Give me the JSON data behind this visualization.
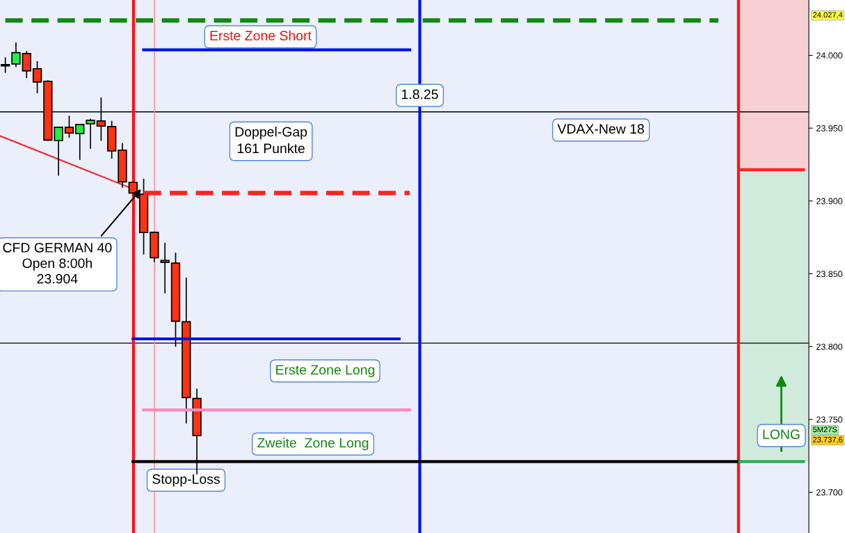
{
  "chart_data": {
    "type": "candlestick",
    "categories": [
      null,
      null,
      null,
      null,
      null,
      null,
      null,
      null,
      null,
      null,
      null,
      null,
      null,
      null,
      null,
      null,
      null,
      null,
      null,
      null,
      null,
      null,
      null,
      null,
      null,
      null,
      null,
      null,
      null,
      null,
      null,
      null,
      null,
      null,
      null,
      null,
      null,
      null,
      null,
      null,
      null,
      null,
      null,
      null,
      null,
      null,
      null,
      null,
      null,
      null,
      null,
      null,
      null,
      null,
      null,
      null,
      null,
      null,
      null,
      null,
      null,
      null,
      null,
      null,
      null,
      null,
      null,
      null,
      null,
      null,
      null,
      null,
      null,
      null,
      null,
      null
    ],
    "ohlc": [
      [
        23992.8,
        23998.6,
        23988.0,
        23993.6
      ],
      [
        23994.1,
        24008.8,
        23992.0,
        24001.9
      ],
      [
        24001.3,
        24002.9,
        23984.4,
        23989.3
      ],
      [
        23990.8,
        23996.0,
        23974.0,
        23981.7
      ],
      [
        23982.2,
        23982.9,
        23941.3,
        23941.8
      ],
      [
        23941.5,
        23950.6,
        23917.4,
        23950.6
      ],
      [
        23950.6,
        23958.5,
        23943.4,
        23946.6
      ],
      [
        23946.3,
        23952.5,
        23928.2,
        23952.5
      ],
      [
        23953.0,
        23956.5,
        23935.9,
        23955.4
      ],
      [
        23954.9,
        23971.0,
        23941.3,
        23951.4
      ],
      [
        23951.1,
        23955.0,
        23929.0,
        23934.3
      ],
      [
        23934.9,
        23939.7,
        23909.1,
        23913.1
      ],
      [
        23912.8,
        23912.8,
        23905.0,
        23905.5
      ],
      [
        23904.6,
        23915.2,
        23863.2,
        23878.3
      ],
      [
        23878.5,
        23879.0,
        23858.0,
        23861.0
      ],
      [
        23859.2,
        23871.3,
        23836.5,
        23857.8
      ],
      [
        23857.3,
        23864.5,
        23799.9,
        23817.4
      ],
      [
        23817.1,
        23847.4,
        23747.2,
        23765.0
      ],
      [
        23764.4,
        23771.1,
        23712.2,
        23738.9
      ],
      null,
      null,
      null,
      null,
      null,
      null,
      null,
      null,
      null,
      null,
      null,
      null,
      null,
      null,
      null,
      null,
      null,
      null,
      null,
      null,
      null,
      null,
      null,
      null,
      null,
      null,
      null,
      null,
      null,
      null,
      null,
      null,
      null,
      null,
      null,
      null,
      null,
      null,
      null,
      null,
      null,
      null,
      null,
      null,
      null,
      null,
      null,
      null,
      null,
      null,
      null,
      null,
      null,
      null,
      null,
      null,
      null
    ],
    "colors": [
      "#22ee44",
      "#22ee44",
      "#ff3311",
      "#ff3311",
      "#ff3311",
      "#22ee44",
      "#ff3311",
      "#22ee44",
      "#22ee44",
      "#ff3311",
      "#ff3311",
      "#ff3311",
      "#ff3311",
      "#ff3311",
      "#ff3311",
      "#ff3311",
      "#ff3311",
      "#ff3311",
      "#ff3311",
      null,
      null,
      null,
      null,
      null,
      null,
      null,
      null,
      null,
      null,
      null,
      null,
      null,
      null,
      null,
      null,
      null,
      null,
      null,
      null,
      null,
      null,
      null,
      null,
      null,
      null,
      null,
      null,
      null,
      null,
      null,
      null,
      null,
      null,
      null,
      null,
      null,
      null,
      null,
      null,
      null,
      null,
      null,
      null,
      null,
      null,
      null,
      null,
      null,
      null,
      null,
      null,
      null,
      null,
      null,
      null,
      null
    ],
    "series": [
      {
        "type": "line",
        "color": "#118811",
        "line_style": "dashed",
        "values": [
          24024,
          24024,
          24024,
          24024,
          24024,
          24024,
          24024,
          24024,
          24024,
          24024,
          24024,
          24024,
          24024,
          24024,
          24024,
          24024,
          24024,
          24024,
          24024,
          24024,
          24024,
          24024,
          24024,
          24024,
          24024,
          24024,
          24024,
          24024,
          24024,
          24024,
          24024,
          24024,
          24024,
          24024,
          24024,
          24024,
          24024,
          24024,
          24024,
          24024,
          24024,
          24024,
          24024,
          24024,
          24024,
          24024,
          24024,
          24024,
          24024,
          24024,
          24024,
          24024,
          24024,
          24024,
          24024,
          24024,
          24024,
          24024,
          24024,
          24024,
          24024,
          24024,
          24024,
          24024,
          24024,
          24024,
          24024,
          24024,
          null,
          null,
          null,
          null,
          null,
          null,
          null,
          null
        ]
      },
      {
        "type": "line",
        "color": "#0011ee",
        "line_style": "solid",
        "values": [
          null,
          null,
          null,
          null,
          null,
          null,
          null,
          null,
          null,
          null,
          null,
          null,
          null,
          24003.8,
          24003.8,
          24003.8,
          24003.8,
          24003.8,
          24003.8,
          24003.8,
          24003.8,
          24003.8,
          24003.8,
          24003.8,
          24003.8,
          24003.8,
          24003.8,
          24003.8,
          24003.8,
          24003.8,
          24003.8,
          24003.8,
          24003.8,
          24003.8,
          24003.8,
          24003.8,
          24003.8,
          24003.8,
          24003.8,
          null,
          null,
          null,
          null,
          null,
          null,
          null,
          null,
          null,
          null,
          null,
          null,
          null,
          null,
          null,
          null,
          null,
          null,
          null,
          null,
          null,
          null,
          null,
          null,
          null,
          null,
          null,
          null,
          null,
          null,
          null,
          null,
          null,
          null,
          null,
          null,
          null
        ]
      },
      {
        "type": "line",
        "color": "#ff2222",
        "line_style": "dashed",
        "values": [
          null,
          null,
          null,
          null,
          null,
          null,
          null,
          null,
          null,
          null,
          null,
          null,
          null,
          23905.5,
          23905.5,
          23905.5,
          23905.5,
          23905.5,
          23905.5,
          23905.5,
          23905.5,
          23905.5,
          23905.5,
          23905.5,
          23905.5,
          23905.5,
          23905.5,
          23905.5,
          23905.5,
          23905.5,
          23905.5,
          23905.5,
          23905.5,
          23905.5,
          23905.5,
          23905.5,
          23905.5,
          23905.5,
          23905.5,
          null,
          null,
          null,
          null,
          null,
          null,
          null,
          null,
          null,
          null,
          null,
          null,
          null,
          null,
          null,
          null,
          null,
          null,
          null,
          null,
          null,
          null,
          null,
          null,
          null,
          null,
          null,
          null,
          null,
          null,
          null,
          null,
          null,
          null,
          null,
          null,
          null
        ]
      },
      {
        "type": "line",
        "color": "#0011ee",
        "line_style": "solid",
        "values": [
          null,
          null,
          null,
          null,
          null,
          null,
          null,
          null,
          null,
          null,
          null,
          null,
          23805.3,
          23805.3,
          23805.3,
          23805.3,
          23805.3,
          23805.3,
          23805.3,
          23805.3,
          23805.3,
          23805.3,
          23805.3,
          23805.3,
          23805.3,
          23805.3,
          23805.3,
          23805.3,
          23805.3,
          23805.3,
          23805.3,
          23805.3,
          23805.3,
          23805.3,
          23805.3,
          23805.3,
          23805.3,
          23805.3,
          null,
          null,
          null,
          null,
          null,
          null,
          null,
          null,
          null,
          null,
          null,
          null,
          null,
          null,
          null,
          null,
          null,
          null,
          null,
          null,
          null,
          null,
          null,
          null,
          null,
          null,
          null,
          null,
          null,
          null,
          null,
          null,
          null,
          null,
          null,
          null,
          null,
          null
        ]
      },
      {
        "type": "line",
        "color": "#ff88bb",
        "line_style": "solid",
        "values": [
          null,
          null,
          null,
          null,
          null,
          null,
          null,
          null,
          null,
          null,
          null,
          null,
          null,
          23756.5,
          23756.5,
          23756.5,
          23756.5,
          23756.5,
          23756.5,
          23756.5,
          23756.5,
          23756.5,
          23756.5,
          23756.5,
          23756.5,
          23756.5,
          23756.5,
          23756.5,
          23756.5,
          23756.5,
          23756.5,
          23756.5,
          23756.5,
          23756.5,
          23756.5,
          23756.5,
          23756.5,
          23756.5,
          23756.5,
          null,
          null,
          null,
          null,
          null,
          null,
          null,
          null,
          null,
          null,
          null,
          null,
          null,
          null,
          null,
          null,
          null,
          null,
          null,
          null,
          null,
          null,
          null,
          null,
          null,
          null,
          null,
          null,
          null,
          null,
          null,
          null,
          null,
          null,
          null,
          null,
          null
        ]
      },
      {
        "type": "line",
        "color": "#000000",
        "line_style": "solid",
        "values": [
          null,
          null,
          null,
          null,
          null,
          null,
          null,
          null,
          null,
          null,
          null,
          null,
          23721,
          23721,
          23721,
          23721,
          23721,
          23721,
          23721,
          23721,
          23721,
          23721,
          23721,
          23721,
          23721,
          23721,
          23721,
          23721,
          23721,
          23721,
          23721,
          23721,
          23721,
          23721,
          23721,
          23721,
          23721,
          23721,
          23721,
          23721,
          23721,
          23721,
          23721,
          23721,
          23721,
          23721,
          23721,
          23721,
          23721,
          23721,
          23721,
          23721,
          23721,
          23721,
          23721,
          23721,
          23721,
          23721,
          23721,
          23721,
          23721,
          23721,
          23721,
          23721,
          23721,
          23721,
          23721,
          23721,
          23721,
          23721,
          null,
          null,
          null,
          null,
          null,
          null
        ]
      },
      {
        "type": "line",
        "color": "#ff2222",
        "line_style": "solid",
        "values": [
          null,
          null,
          null,
          null,
          null,
          null,
          null,
          null,
          null,
          null,
          null,
          null,
          null,
          null,
          null,
          null,
          null,
          null,
          null,
          null,
          null,
          null,
          null,
          null,
          null,
          null,
          null,
          null,
          null,
          null,
          null,
          null,
          null,
          null,
          null,
          null,
          null,
          null,
          null,
          null,
          null,
          null,
          null,
          null,
          null,
          null,
          null,
          null,
          null,
          null,
          null,
          null,
          null,
          null,
          null,
          null,
          null,
          null,
          null,
          null,
          null,
          null,
          null,
          null,
          null,
          null,
          null,
          null,
          null,
          23921.5,
          23921.5,
          23921.5,
          23921.5,
          23921.5,
          23921.5,
          23921.5
        ]
      },
      {
        "type": "line",
        "color": "#33aa55",
        "line_style": "solid",
        "values": [
          null,
          null,
          null,
          null,
          null,
          null,
          null,
          null,
          null,
          null,
          null,
          null,
          null,
          null,
          null,
          null,
          null,
          null,
          null,
          null,
          null,
          null,
          null,
          null,
          null,
          null,
          null,
          null,
          null,
          null,
          null,
          null,
          null,
          null,
          null,
          null,
          null,
          null,
          null,
          null,
          null,
          null,
          null,
          null,
          null,
          null,
          null,
          null,
          null,
          null,
          null,
          null,
          null,
          null,
          null,
          null,
          null,
          null,
          null,
          null,
          null,
          null,
          null,
          null,
          null,
          null,
          null,
          null,
          null,
          23721,
          23721,
          23721,
          23721,
          23721,
          23721,
          23721
        ]
      }
    ],
    "bands": [
      {
        "axis": "y",
        "from": 23921.5,
        "to": 24038,
        "color": "#f7d0d4"
      },
      {
        "axis": "y",
        "from": 23721.0,
        "to": 23921.5,
        "color": "#d0eadc"
      }
    ],
    "ref_lines": [
      {
        "axis": "y",
        "value": 23961.2,
        "color": "#000000"
      },
      {
        "axis": "y",
        "value": 23802.4,
        "color": "#000000"
      }
    ],
    "annotations": [
      "Erste Zone Short",
      "1.8.25",
      "Doppel-Gap\n161 Punkte",
      "VDAX-New 18",
      "CFD GERMAN 40\nOpen 8:00h\n23.904",
      "Erste Zone Long",
      "Zweite  Zone Long",
      "Stopp-Loss",
      "LONG",
      "24.027,4",
      "5M27S",
      "23.737,6"
    ],
    "ylim": [
      23672,
      24038
    ],
    "yticks": [
      {
        "value": 23700,
        "label": "23.700"
      },
      {
        "value": 23750,
        "label": "23.750"
      },
      {
        "value": 23800,
        "label": "23.800"
      },
      {
        "value": 23850,
        "label": "23.850"
      },
      {
        "value": 23900,
        "label": "23.900"
      },
      {
        "value": 23950,
        "label": "23.950"
      },
      {
        "value": 24000,
        "label": "24.000"
      }
    ],
    "tick_labels": "y",
    "grid": false
  }
}
